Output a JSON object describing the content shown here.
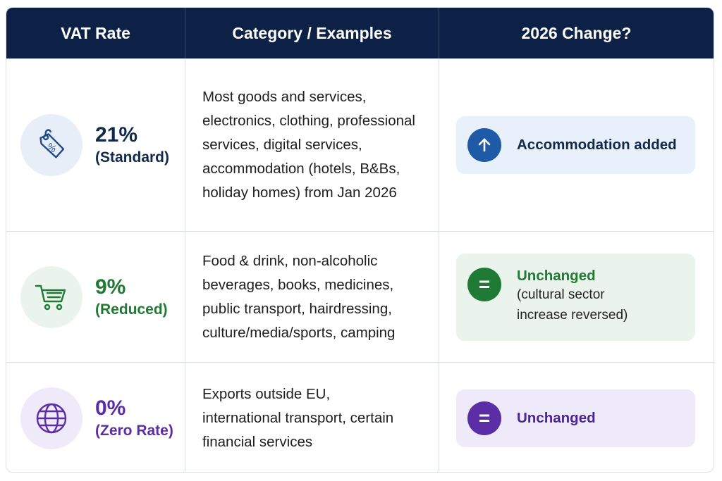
{
  "headers": [
    "VAT Rate",
    "Category / Examples",
    "2026 Change?"
  ],
  "rows": [
    {
      "rate": "21%",
      "label": "(Standard)",
      "icon": "price-tag-percent-icon",
      "color": "#13294b",
      "circle_bg": "#e7eef8",
      "examples": "Most goods and services, electronics, clothing, professional services, digital services, accommodation (hotels, B&Bs, holiday homes) from Jan 2026",
      "change": {
        "icon": "arrow-up-icon",
        "title": "Accommodation added",
        "note": "",
        "accent": "#1f5aa6",
        "bg": "#e8f0fb",
        "title_color": "#13294b"
      }
    },
    {
      "rate": "9%",
      "label": "(Reduced)",
      "icon": "shopping-cart-icon",
      "color": "#217a34",
      "circle_bg": "#eaf4ec",
      "examples": "Food & drink, non-alcoholic beverages, books, medicines, public transport, hairdressing, culture/media/sports, camping",
      "change": {
        "icon": "equals-icon",
        "title": "Unchanged",
        "note": "(cultural sector increase reversed)",
        "accent": "#1f7a36",
        "bg": "#eaf4ec",
        "title_color": "#217a34"
      }
    },
    {
      "rate": "0%",
      "label": "(Zero Rate)",
      "icon": "globe-icon",
      "color": "#5b2ea6",
      "circle_bg": "#efeaf9",
      "examples": "Exports outside EU, international transport, certain financial services",
      "change": {
        "icon": "equals-icon",
        "title": "Unchanged",
        "note": "",
        "accent": "#5b2ea6",
        "bg": "#efeaf9",
        "title_color": "#4b2596"
      }
    }
  ]
}
